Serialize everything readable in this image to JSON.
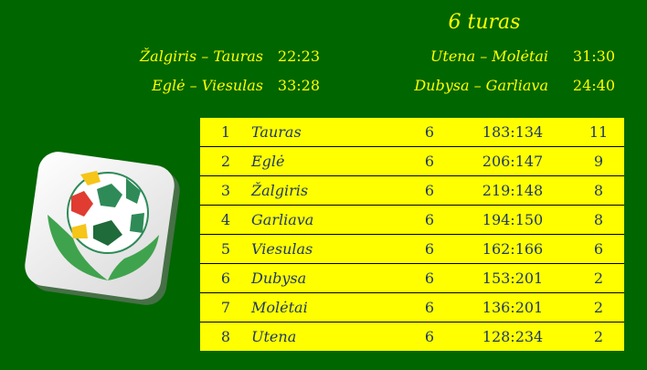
{
  "title": "6 turas",
  "matches": [
    {
      "teams": "Žalgiris – Tauras",
      "score": "22:23"
    },
    {
      "teams": "Eglė – Viesulas",
      "score": "33:28"
    },
    {
      "teams": "Utena – Molėtai",
      "score": "31:30"
    },
    {
      "teams": "Dubysa – Garliava",
      "score": "24:40"
    }
  ],
  "standings": [
    {
      "rank": "1",
      "team": "Tauras",
      "games": "6",
      "score": "183:134",
      "points": "11"
    },
    {
      "rank": "2",
      "team": "Eglė",
      "games": "6",
      "score": "206:147",
      "points": "9"
    },
    {
      "rank": "3",
      "team": "Žalgiris",
      "games": "6",
      "score": "219:148",
      "points": "8"
    },
    {
      "rank": "4",
      "team": "Garliava",
      "games": "6",
      "score": "194:150",
      "points": "8"
    },
    {
      "rank": "5",
      "team": "Viesulas",
      "games": "6",
      "score": "162:166",
      "points": "6"
    },
    {
      "rank": "6",
      "team": "Dubysa",
      "games": "6",
      "score": "153:201",
      "points": "2"
    },
    {
      "rank": "7",
      "team": "Molėtai",
      "games": "6",
      "score": "136:201",
      "points": "2"
    },
    {
      "rank": "8",
      "team": "Utena",
      "games": "6",
      "score": "128:234",
      "points": "2"
    }
  ],
  "colors": {
    "background": "#006600",
    "text": "#ffff00",
    "table_bg": "#ffff00",
    "table_text": "#1f3864"
  },
  "logo": "ball-in-hands-logo"
}
